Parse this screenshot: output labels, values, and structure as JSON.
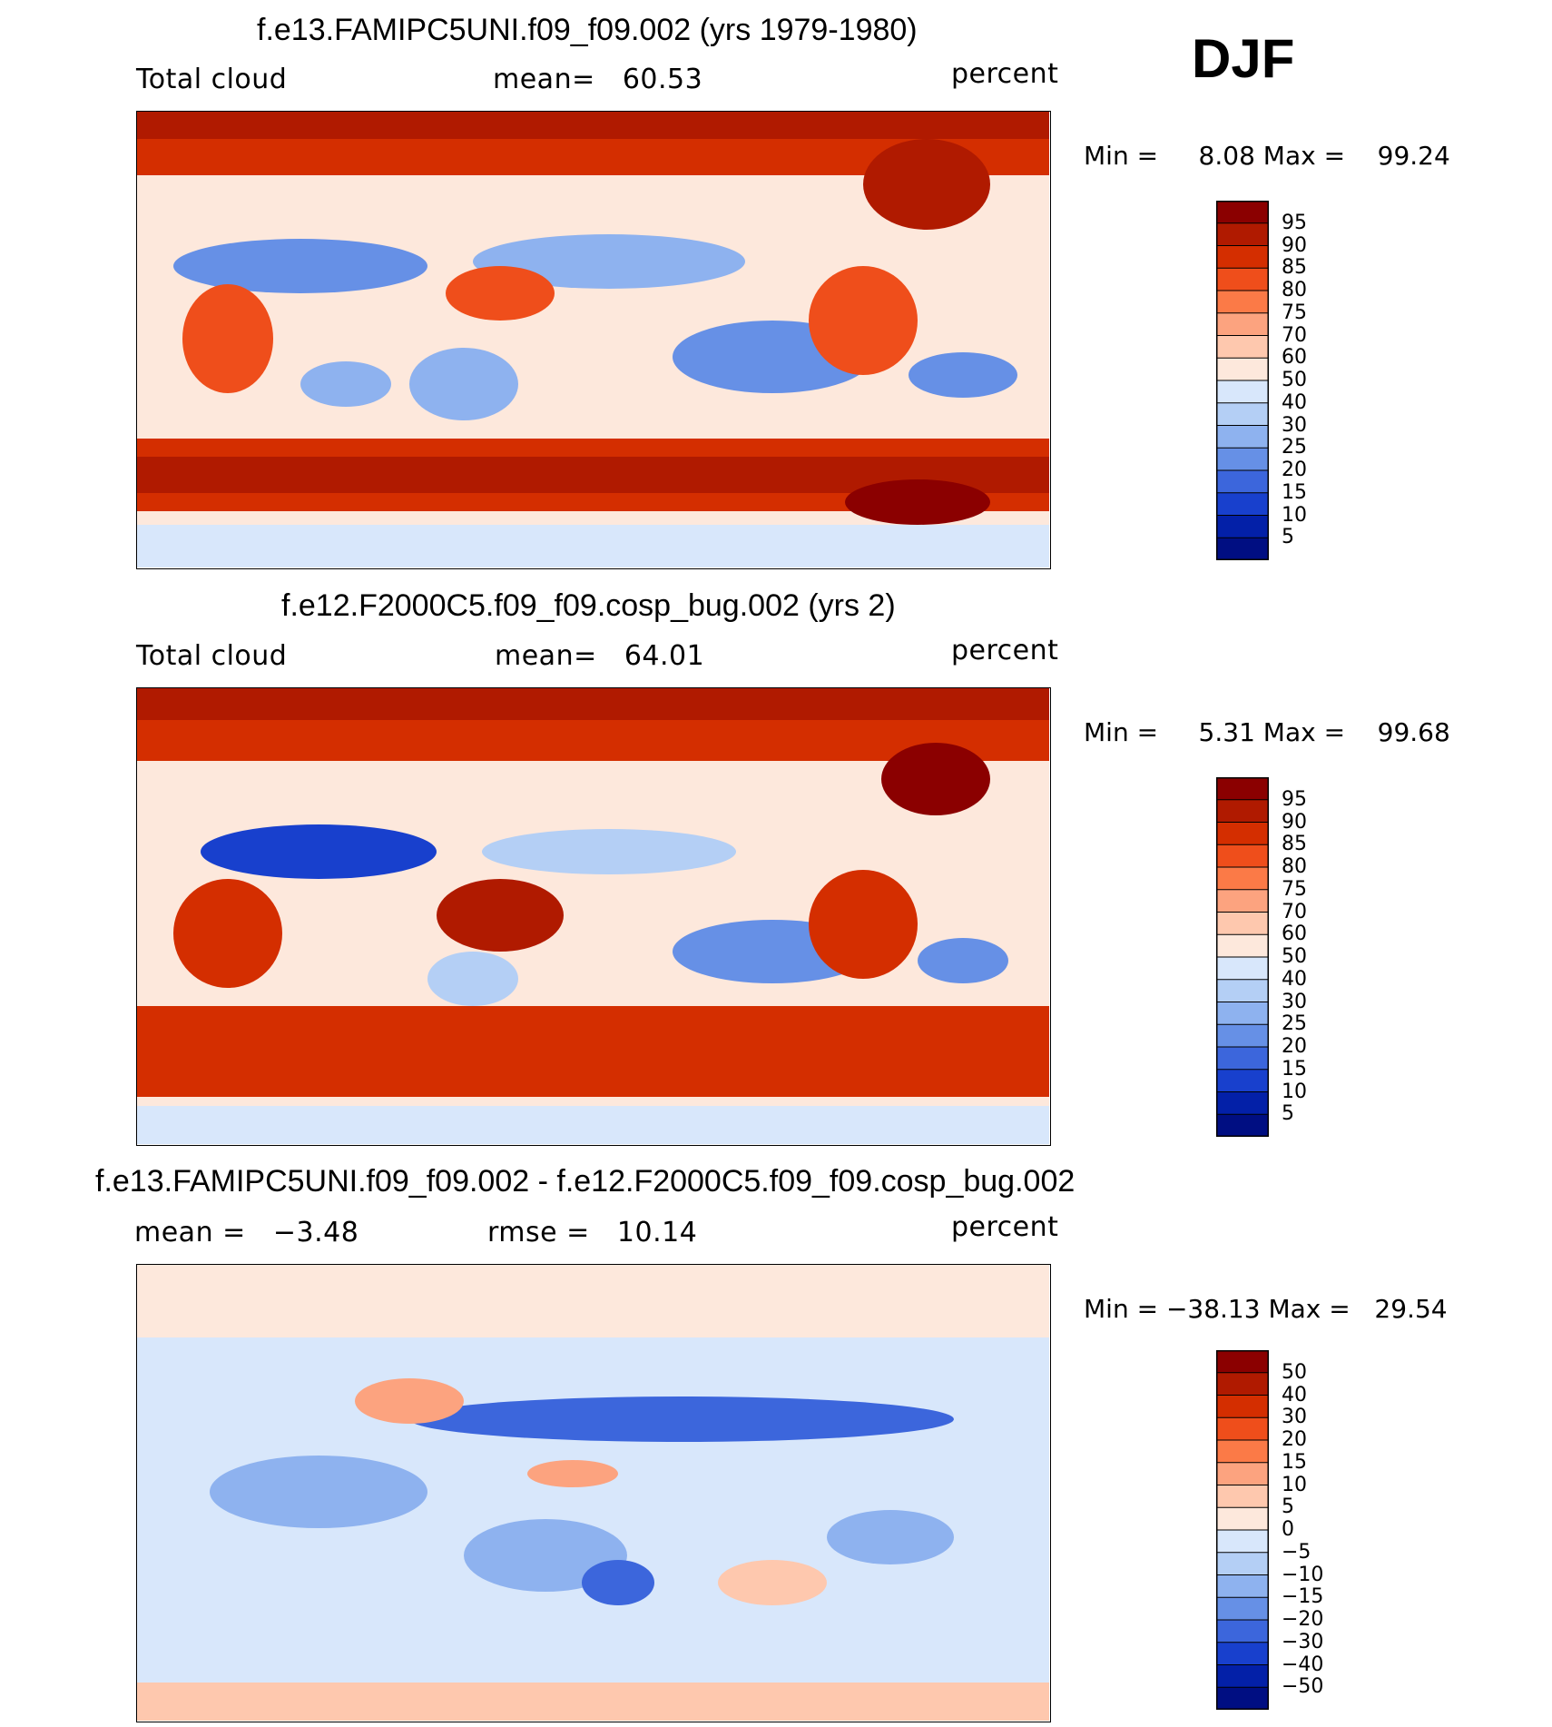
{
  "season": "DJF",
  "chart_data": [
    {
      "type": "heatmap",
      "title": "f.e13.FAMIPC5UNI.f09_f09.002 (yrs 1979-1980)",
      "left_label": "Total cloud",
      "center_label": "mean=   60.53",
      "right_label": "percent",
      "stats_text": "Min =     8.08 Max =    99.24",
      "variable": "Total cloud",
      "units": "percent",
      "mean": 60.53,
      "min": 8.08,
      "max": 99.24,
      "colorbar_levels": [
        "95",
        "90",
        "85",
        "80",
        "75",
        "70",
        "60",
        "50",
        "40",
        "30",
        "25",
        "20",
        "15",
        "10",
        "5"
      ],
      "colors": [
        "#8b0000",
        "#b01a00",
        "#d42e00",
        "#ef4e1b",
        "#fb7a47",
        "#fca37f",
        "#fec8ae",
        "#fde8dc",
        "#d8e7fb",
        "#b4cff5",
        "#8eb2ef",
        "#6690e6",
        "#3c66dc",
        "#1840cd",
        "#0320a8",
        "#000e82"
      ]
    },
    {
      "type": "heatmap",
      "title": "f.e12.F2000C5.f09_f09.cosp_bug.002 (yrs 2)",
      "left_label": "Total cloud",
      "center_label": "mean=   64.01",
      "right_label": "percent",
      "stats_text": "Min =     5.31 Max =    99.68",
      "variable": "Total cloud",
      "units": "percent",
      "mean": 64.01,
      "min": 5.31,
      "max": 99.68,
      "colorbar_levels": [
        "95",
        "90",
        "85",
        "80",
        "75",
        "70",
        "60",
        "50",
        "40",
        "30",
        "25",
        "20",
        "15",
        "10",
        "5"
      ],
      "colors": [
        "#8b0000",
        "#b01a00",
        "#d42e00",
        "#ef4e1b",
        "#fb7a47",
        "#fca37f",
        "#fec8ae",
        "#fde8dc",
        "#d8e7fb",
        "#b4cff5",
        "#8eb2ef",
        "#6690e6",
        "#3c66dc",
        "#1840cd",
        "#0320a8",
        "#000e82"
      ]
    },
    {
      "type": "heatmap",
      "title": "f.e13.FAMIPC5UNI.f09_f09.002 - f.e12.F2000C5.f09_f09.cosp_bug.002",
      "left_label": "mean =   −3.48",
      "center_label": "rmse =   10.14",
      "right_label": "percent",
      "stats_text": "Min = −38.13 Max =   29.54",
      "units": "percent",
      "mean": -3.48,
      "rmse": 10.14,
      "min": -38.13,
      "max": 29.54,
      "colorbar_levels": [
        "50",
        "40",
        "30",
        "20",
        "15",
        "10",
        "5",
        "0",
        "−5",
        "−10",
        "−15",
        "−20",
        "−30",
        "−40",
        "−50"
      ],
      "colors": [
        "#8b0000",
        "#b01a00",
        "#d42e00",
        "#ef4e1b",
        "#fb7a47",
        "#fca37f",
        "#fec8ae",
        "#fde8dc",
        "#d8e7fb",
        "#b4cff5",
        "#8eb2ef",
        "#6690e6",
        "#3c66dc",
        "#1840cd",
        "#0320a8",
        "#000e82"
      ]
    }
  ]
}
